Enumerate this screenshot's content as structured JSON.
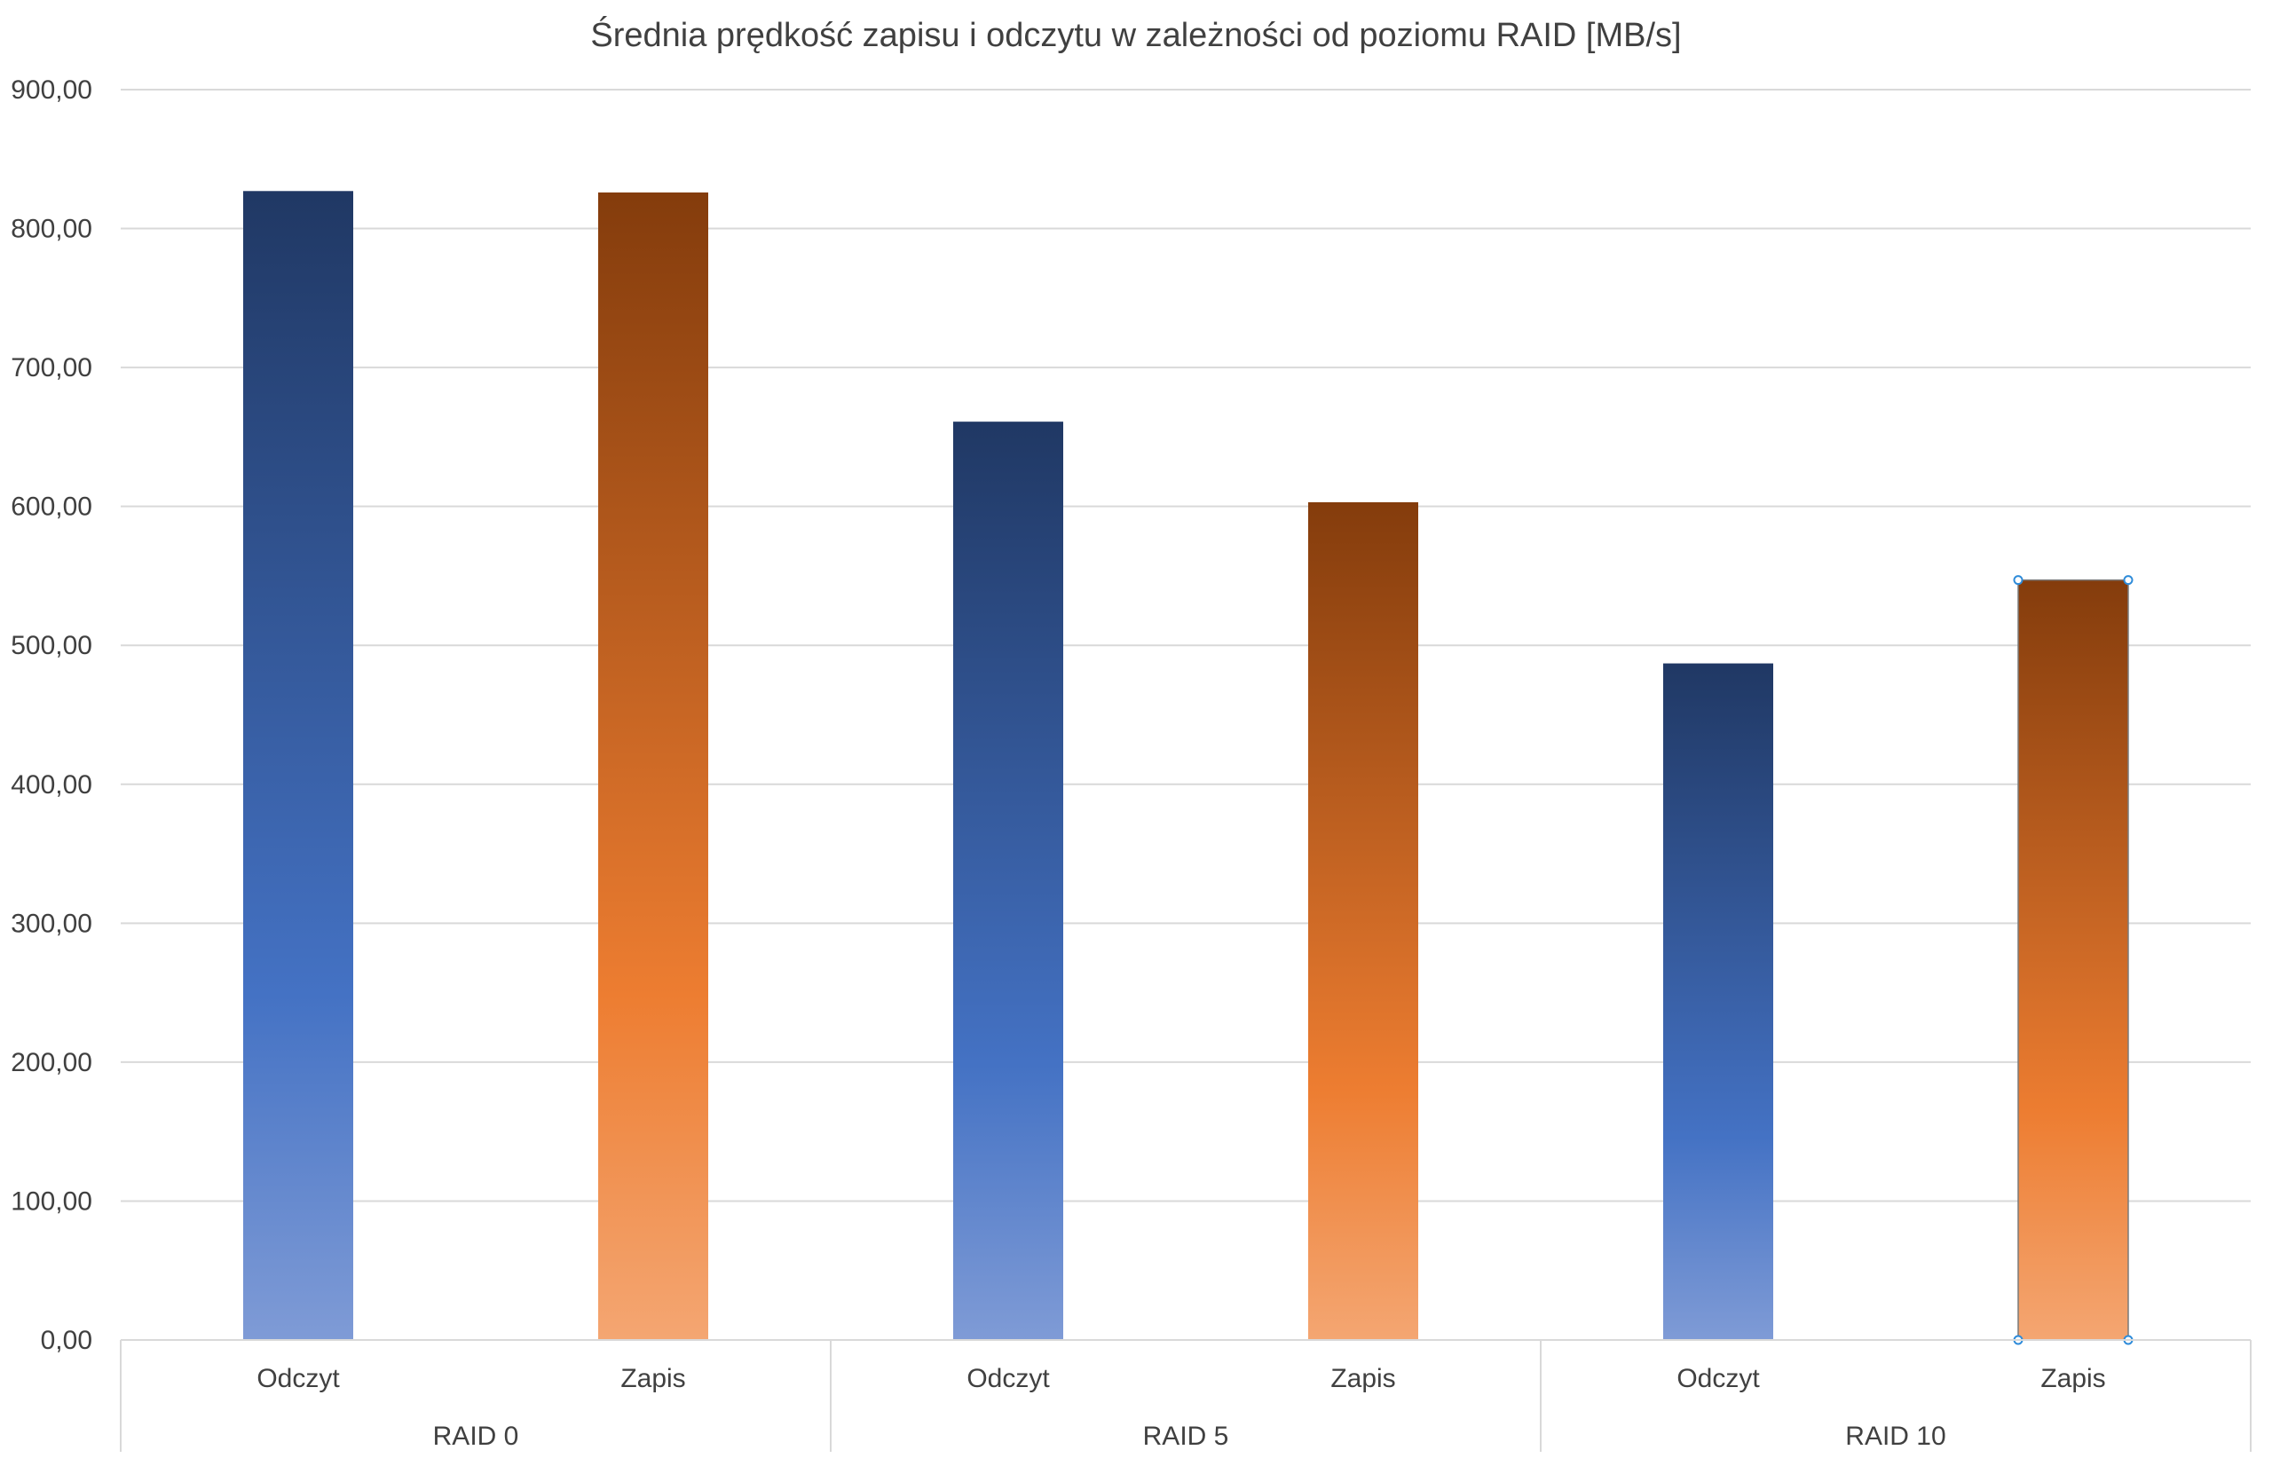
{
  "chart_data": {
    "type": "bar",
    "title": "Średnia prędkość zapisu i odczytu w zależności od poziomu RAID [MB/s]",
    "xlabel": "",
    "ylabel": "",
    "ylim": [
      0,
      900
    ],
    "yticks": [
      0,
      100,
      200,
      300,
      400,
      500,
      600,
      700,
      800,
      900
    ],
    "ytick_labels": [
      "0,00",
      "100,00",
      "200,00",
      "300,00",
      "400,00",
      "500,00",
      "600,00",
      "700,00",
      "800,00",
      "900,00"
    ],
    "grid": true,
    "legend": "none",
    "groups": [
      {
        "label": "RAID 0",
        "bars": [
          {
            "category": "Odczyt",
            "value": 827,
            "series": "read"
          },
          {
            "category": "Zapis",
            "value": 826,
            "series": "write"
          }
        ]
      },
      {
        "label": "RAID 5",
        "bars": [
          {
            "category": "Odczyt",
            "value": 661,
            "series": "read"
          },
          {
            "category": "Zapis",
            "value": 603,
            "series": "write"
          }
        ]
      },
      {
        "label": "RAID 10",
        "bars": [
          {
            "category": "Odczyt",
            "value": 487,
            "series": "read"
          },
          {
            "category": "Zapis",
            "value": 547,
            "series": "write"
          }
        ]
      }
    ],
    "colors": {
      "read_top": "#203864",
      "read_mid": "#4472C4",
      "read_bottom": "#7F9BD6",
      "write_top": "#843C0C",
      "write_mid": "#ED7D31",
      "write_bottom": "#F4A672",
      "grid": "#D9D9D9",
      "axis_text": "#404040",
      "selection": "#2E8BD9"
    },
    "selected_bar": {
      "group": "RAID 10",
      "category": "Zapis"
    }
  }
}
